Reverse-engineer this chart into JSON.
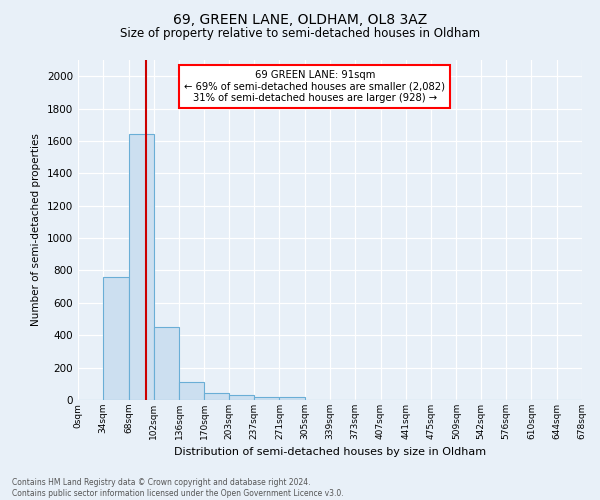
{
  "title1": "69, GREEN LANE, OLDHAM, OL8 3AZ",
  "title2": "Size of property relative to semi-detached houses in Oldham",
  "xlabel": "Distribution of semi-detached houses by size in Oldham",
  "ylabel": "Number of semi-detached properties",
  "footnote": "Contains HM Land Registry data © Crown copyright and database right 2024.\nContains public sector information licensed under the Open Government Licence v3.0.",
  "bin_labels": [
    "0sqm",
    "34sqm",
    "68sqm",
    "102sqm",
    "136sqm",
    "170sqm",
    "203sqm",
    "237sqm",
    "271sqm",
    "305sqm",
    "339sqm",
    "373sqm",
    "407sqm",
    "441sqm",
    "475sqm",
    "509sqm",
    "542sqm",
    "576sqm",
    "610sqm",
    "644sqm",
    "678sqm"
  ],
  "bin_edges": [
    0,
    34,
    68,
    102,
    136,
    170,
    203,
    237,
    271,
    305,
    339,
    373,
    407,
    441,
    475,
    509,
    542,
    576,
    610,
    644,
    678
  ],
  "bar_heights": [
    0,
    760,
    1640,
    450,
    110,
    46,
    30,
    20,
    20,
    0,
    0,
    0,
    0,
    0,
    0,
    0,
    0,
    0,
    0,
    0
  ],
  "bar_color": "#ccdff0",
  "bar_edge_color": "#6aaed6",
  "property_size": 91,
  "red_line_x": 91,
  "annotation_title": "69 GREEN LANE: 91sqm",
  "annotation_line1": "← 69% of semi-detached houses are smaller (2,082)",
  "annotation_line2": "31% of semi-detached houses are larger (928) →",
  "annotation_box_color": "white",
  "annotation_box_edge": "red",
  "red_line_color": "#cc0000",
  "ylim": [
    0,
    2100
  ],
  "background_color": "#e8f0f8",
  "grid_color": "white",
  "yticks": [
    0,
    200,
    400,
    600,
    800,
    1000,
    1200,
    1400,
    1600,
    1800,
    2000
  ]
}
